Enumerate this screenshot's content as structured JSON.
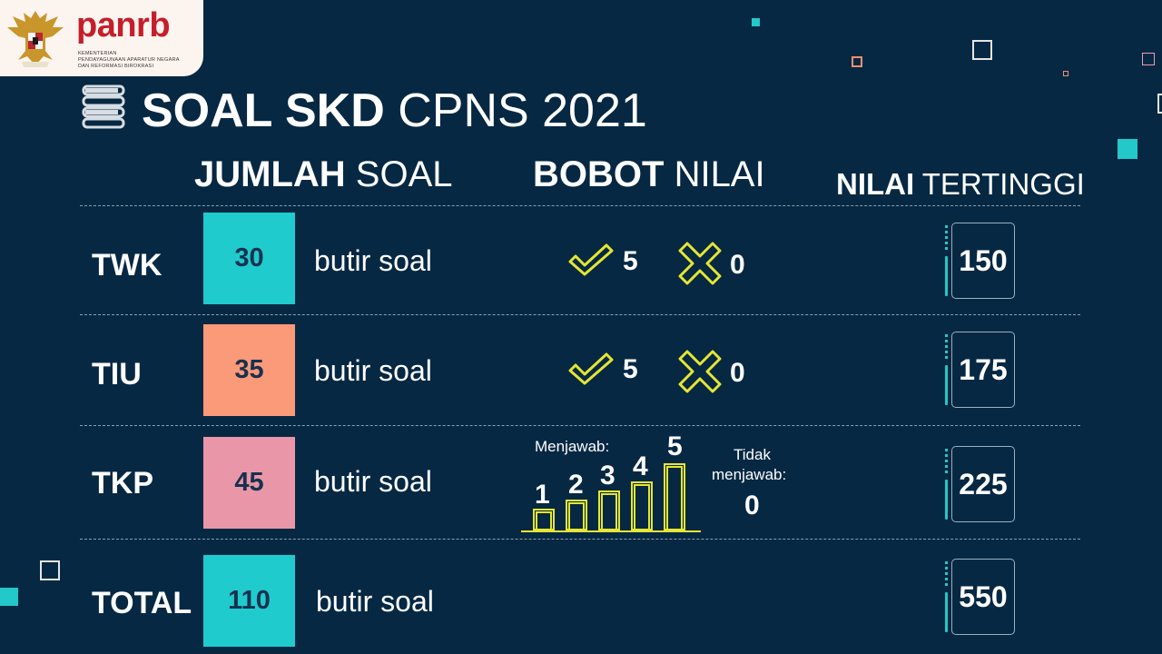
{
  "logo": {
    "brand": "panrb",
    "subtitle_lines": [
      "KEMENTERIAN",
      "PENDAYAGUNAAN APARATUR NEGARA",
      "DAN REFORMASI BIROKRASI"
    ]
  },
  "title": {
    "bold": "SOAL SKD",
    "light": "CPNS 2021"
  },
  "headers": {
    "jumlah": {
      "bold": "JUMLAH",
      "light": "SOAL"
    },
    "bobot": {
      "bold": "BOBOT",
      "light": "NILAI"
    },
    "nilai": {
      "bold": "NILAI",
      "light": "TERTINGGI"
    }
  },
  "rows": [
    {
      "label": "TWK",
      "count": "30",
      "unit": "butir soal",
      "correct": "5",
      "wrong": "0",
      "max": "150",
      "color": "#1fcbcd"
    },
    {
      "label": "TIU",
      "count": "35",
      "unit": "butir soal",
      "correct": "5",
      "wrong": "0",
      "max": "175",
      "color": "#fb9a79"
    },
    {
      "label": "TKP",
      "count": "45",
      "unit": "butir soal",
      "max": "225",
      "color": "#e997a8"
    }
  ],
  "tkp": {
    "answered_label": "Menjawab:",
    "levels": [
      "1",
      "2",
      "3",
      "4",
      "5"
    ],
    "unanswered_label_1": "Tidak",
    "unanswered_label_2": "menjawab:",
    "unanswered_value": "0"
  },
  "total": {
    "label": "TOTAL",
    "count": "110",
    "unit": "butir soal",
    "max": "550",
    "color": "#1fcbcd"
  },
  "colors": {
    "background": "#062843",
    "accent": "#23c8c8",
    "icon": "#e6e633"
  }
}
